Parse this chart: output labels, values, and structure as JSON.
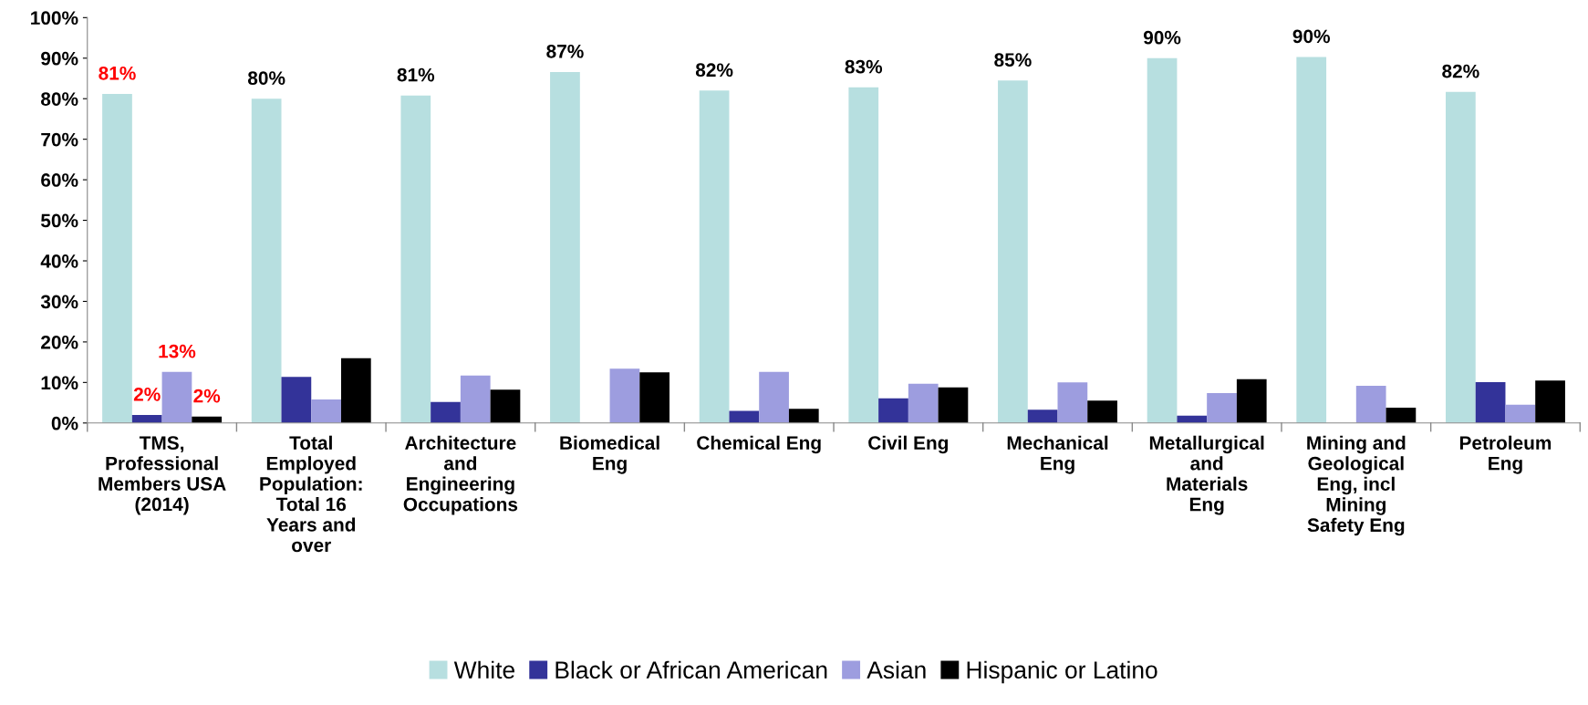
{
  "chart_data": {
    "type": "bar",
    "categories": [
      "TMS, Professional Members USA (2014)",
      "Total Employed Population: Total 16 Years and over",
      "Architecture and Engineering Occupations",
      "Biomedical Eng",
      "Chemical Eng",
      "Civil Eng",
      "Mechanical Eng",
      "Metallurgical and Materials Eng",
      "Mining and Geological Eng, incl Mining Safety Eng",
      "Petroleum Eng"
    ],
    "series": [
      {
        "name": "White",
        "color": "#b7dfe0",
        "values": [
          81.2,
          80,
          80.8,
          86.6,
          82,
          82.8,
          84.5,
          90,
          90.3,
          81.7
        ],
        "value_labels": [
          "81%",
          "80%",
          "81%",
          "87%",
          "82%",
          "83%",
          "85%",
          "90%",
          "90%",
          "82%"
        ]
      },
      {
        "name": "Black or African American",
        "color": "#333399",
        "values": [
          2,
          11.4,
          5.2,
          0,
          3,
          6.1,
          3.3,
          1.8,
          0,
          10.1
        ],
        "value_labels": [
          "2%",
          null,
          null,
          null,
          null,
          null,
          null,
          null,
          null,
          null
        ]
      },
      {
        "name": "Asian",
        "color": "#9d9ddf",
        "values": [
          12.6,
          5.8,
          11.7,
          13.4,
          12.6,
          9.7,
          10,
          7.4,
          9.2,
          4.5
        ],
        "value_labels": [
          "13%",
          null,
          null,
          null,
          null,
          null,
          null,
          null,
          null,
          null
        ]
      },
      {
        "name": "Hispanic or Latino",
        "color": "#000000",
        "values": [
          1.6,
          16,
          8.2,
          12.5,
          3.5,
          8.8,
          5.5,
          10.8,
          3.8,
          10.5
        ],
        "value_labels": [
          "2%",
          null,
          null,
          null,
          null,
          null,
          null,
          null,
          null,
          null
        ]
      }
    ],
    "ylim": [
      0,
      100
    ],
    "yticks": [
      {
        "value": 0,
        "label": "0%"
      },
      {
        "value": 10,
        "label": "10%"
      },
      {
        "value": 20,
        "label": "20%"
      },
      {
        "value": 30,
        "label": "30%"
      },
      {
        "value": 40,
        "label": "40%"
      },
      {
        "value": 50,
        "label": "50%"
      },
      {
        "value": 60,
        "label": "60%"
      },
      {
        "value": 70,
        "label": "70%"
      },
      {
        "value": 80,
        "label": "80%"
      },
      {
        "value": 90,
        "label": "90%"
      },
      {
        "value": 100,
        "label": "100%"
      }
    ],
    "grid": false,
    "legend": "bottom"
  }
}
